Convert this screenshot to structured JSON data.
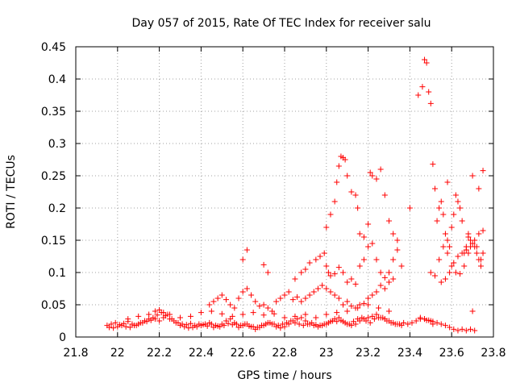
{
  "chart_data": {
    "type": "scatter",
    "title": "Day 057 of 2015, Rate Of TEC Index for receiver salu",
    "xlabel": "GPS time / hours",
    "ylabel": "ROTI / TECUs",
    "xlim": [
      21.8,
      23.8
    ],
    "ylim": [
      0,
      0.45
    ],
    "xticks": [
      21.8,
      22,
      22.2,
      22.4,
      22.6,
      22.8,
      23,
      23.2,
      23.4,
      23.6,
      23.8
    ],
    "xtick_labels": [
      "21.8",
      "22",
      "22.2",
      "22.4",
      "22.6",
      "22.8",
      "23",
      "23.2",
      "23.4",
      "23.6",
      "23.8"
    ],
    "yticks": [
      0,
      0.05,
      0.1,
      0.15,
      0.2,
      0.25,
      0.3,
      0.35,
      0.4,
      0.45
    ],
    "ytick_labels": [
      "0",
      "0.05",
      "0.1",
      "0.15",
      "0.2",
      "0.25",
      "0.3",
      "0.35",
      "0.4",
      "0.45"
    ],
    "grid": true,
    "marker": "+",
    "marker_color": "#ff0000",
    "series": [
      {
        "name": "ROTI",
        "x": [
          21.95,
          21.97,
          21.99,
          22.01,
          22.03,
          22.05,
          22.07,
          22.09,
          22.11,
          22.13,
          22.15,
          22.17,
          22.19,
          22.21,
          22.23,
          22.25,
          22.27,
          22.29,
          22.31,
          22.33,
          22.35,
          22.37,
          22.39,
          22.41,
          22.43,
          22.45,
          22.47,
          22.49,
          22.51,
          22.53,
          22.55,
          22.57,
          22.59,
          22.61,
          22.63,
          22.65,
          22.67,
          22.69,
          22.71,
          22.73,
          22.75,
          22.77,
          22.79,
          22.81,
          22.83,
          22.85,
          22.87,
          22.89,
          22.91,
          22.93,
          22.95,
          22.97,
          22.99,
          23.01,
          23.03,
          23.05,
          23.07,
          23.09,
          23.11,
          23.13,
          23.15,
          23.17,
          23.19,
          23.21,
          23.23,
          23.25,
          23.27,
          23.29,
          23.31,
          23.33,
          23.35,
          23.37,
          23.39,
          23.41,
          23.43,
          23.45,
          23.47,
          23.49,
          23.51,
          23.53,
          23.55,
          23.57,
          23.59,
          23.61,
          23.63,
          23.65,
          23.67,
          23.69,
          23.71,
          21.96,
          21.98,
          22.0,
          22.02,
          22.04,
          22.06,
          22.08,
          22.1,
          22.12,
          22.14,
          22.16,
          22.18,
          22.2,
          22.22,
          22.24,
          22.26,
          22.28,
          22.3,
          22.32,
          22.34,
          22.36,
          22.38,
          22.4,
          22.42,
          22.44,
          22.46,
          22.48,
          22.5,
          22.52,
          22.54,
          22.56,
          22.58,
          22.6,
          22.62,
          22.64,
          22.66,
          22.68,
          22.7,
          22.72,
          22.74,
          22.76,
          22.78,
          22.8,
          22.82,
          22.84,
          22.86,
          22.88,
          22.9,
          22.92,
          22.94,
          22.96,
          22.98,
          23.0,
          23.02,
          23.04,
          23.06,
          23.08,
          23.1,
          23.12,
          23.14,
          23.16,
          23.18,
          23.2,
          23.22,
          23.24,
          23.26,
          23.28,
          23.3,
          23.32,
          23.34,
          23.36,
          22.05,
          22.1,
          22.15,
          22.18,
          22.2,
          22.22,
          22.25,
          22.3,
          22.35,
          22.4,
          22.45,
          22.5,
          22.55,
          22.6,
          22.65,
          22.7,
          22.75,
          22.8,
          22.85,
          22.9,
          22.95,
          23.0,
          23.05,
          23.1,
          23.15,
          23.2,
          23.25,
          23.3,
          22.44,
          22.46,
          22.48,
          22.5,
          22.52,
          22.54,
          22.56,
          22.58,
          22.6,
          22.62,
          22.64,
          22.66,
          22.68,
          22.7,
          22.72,
          22.74,
          22.76,
          22.78,
          22.8,
          22.82,
          22.84,
          22.86,
          22.88,
          22.9,
          22.92,
          22.94,
          22.96,
          22.98,
          23.0,
          23.02,
          23.04,
          23.06,
          23.08,
          23.1,
          23.12,
          23.14,
          23.16,
          23.18,
          23.2,
          23.22,
          23.24,
          23.26,
          23.28,
          23.3,
          23.32,
          22.6,
          22.62,
          22.7,
          22.72,
          22.85,
          22.88,
          22.9,
          22.92,
          22.95,
          22.97,
          22.99,
          23.0,
          23.01,
          23.02,
          23.04,
          23.06,
          23.08,
          23.1,
          23.12,
          23.14,
          23.16,
          23.18,
          23.2,
          23.22,
          23.24,
          23.26,
          23.28,
          23.3,
          23.32,
          23.34,
          23.36,
          23.0,
          23.02,
          23.04,
          23.05,
          23.06,
          23.07,
          23.08,
          23.09,
          23.1,
          23.12,
          23.14,
          23.15,
          23.16,
          23.18,
          23.2,
          23.21,
          23.22,
          23.24,
          23.26,
          23.28,
          23.3,
          23.32,
          23.34,
          23.4,
          23.44,
          23.46,
          23.47,
          23.48,
          23.49,
          23.5,
          23.51,
          23.52,
          23.53,
          23.54,
          23.55,
          23.56,
          23.57,
          23.58,
          23.59,
          23.6,
          23.61,
          23.62,
          23.63,
          23.64,
          23.65,
          23.66,
          23.67,
          23.68,
          23.69,
          23.7,
          23.71,
          23.72,
          23.73,
          23.74,
          23.75,
          23.5,
          23.52,
          23.54,
          23.56,
          23.58,
          23.6,
          23.62,
          23.64,
          23.66,
          23.68,
          23.7,
          23.72,
          23.74,
          23.55,
          23.57,
          23.59,
          23.61,
          23.63,
          23.65,
          23.67,
          23.69,
          23.71,
          23.73,
          23.75,
          23.45,
          23.47,
          23.48,
          23.5,
          23.51,
          23.7,
          23.75,
          23.73,
          23.68,
          23.58
        ],
        "y": [
          0.018,
          0.02,
          0.022,
          0.019,
          0.021,
          0.024,
          0.02,
          0.018,
          0.022,
          0.025,
          0.028,
          0.03,
          0.034,
          0.038,
          0.033,
          0.028,
          0.025,
          0.022,
          0.02,
          0.019,
          0.021,
          0.018,
          0.02,
          0.019,
          0.017,
          0.02,
          0.018,
          0.016,
          0.018,
          0.021,
          0.019,
          0.02,
          0.018,
          0.02,
          0.017,
          0.016,
          0.015,
          0.018,
          0.02,
          0.022,
          0.02,
          0.018,
          0.02,
          0.022,
          0.025,
          0.022,
          0.02,
          0.018,
          0.02,
          0.022,
          0.019,
          0.018,
          0.02,
          0.022,
          0.025,
          0.024,
          0.026,
          0.022,
          0.02,
          0.024,
          0.028,
          0.03,
          0.025,
          0.022,
          0.028,
          0.03,
          0.03,
          0.025,
          0.022,
          0.02,
          0.02,
          0.022,
          0.02,
          0.022,
          0.025,
          0.028,
          0.028,
          0.026,
          0.024,
          0.022,
          0.02,
          0.018,
          0.015,
          0.012,
          0.01,
          0.012,
          0.01,
          0.012,
          0.01,
          0.015,
          0.014,
          0.016,
          0.018,
          0.016,
          0.015,
          0.018,
          0.02,
          0.022,
          0.024,
          0.026,
          0.028,
          0.025,
          0.03,
          0.035,
          0.028,
          0.022,
          0.018,
          0.016,
          0.014,
          0.015,
          0.016,
          0.018,
          0.02,
          0.022,
          0.015,
          0.017,
          0.02,
          0.025,
          0.028,
          0.022,
          0.015,
          0.018,
          0.02,
          0.016,
          0.012,
          0.015,
          0.018,
          0.022,
          0.02,
          0.016,
          0.014,
          0.016,
          0.02,
          0.025,
          0.028,
          0.03,
          0.025,
          0.02,
          0.018,
          0.016,
          0.018,
          0.02,
          0.024,
          0.028,
          0.03,
          0.024,
          0.02,
          0.018,
          0.02,
          0.025,
          0.028,
          0.03,
          0.032,
          0.035,
          0.03,
          0.028,
          0.025,
          0.022,
          0.02,
          0.018,
          0.028,
          0.032,
          0.035,
          0.04,
          0.042,
          0.038,
          0.035,
          0.03,
          0.032,
          0.038,
          0.04,
          0.036,
          0.032,
          0.035,
          0.038,
          0.034,
          0.036,
          0.03,
          0.032,
          0.035,
          0.03,
          0.035,
          0.038,
          0.04,
          0.045,
          0.05,
          0.045,
          0.04,
          0.05,
          0.055,
          0.06,
          0.065,
          0.058,
          0.05,
          0.045,
          0.06,
          0.07,
          0.075,
          0.065,
          0.055,
          0.048,
          0.05,
          0.045,
          0.04,
          0.055,
          0.06,
          0.065,
          0.07,
          0.058,
          0.062,
          0.055,
          0.06,
          0.065,
          0.07,
          0.075,
          0.08,
          0.075,
          0.07,
          0.065,
          0.06,
          0.05,
          0.055,
          0.048,
          0.045,
          0.05,
          0.052,
          0.06,
          0.065,
          0.07,
          0.08,
          0.075,
          0.085,
          0.09,
          0.12,
          0.135,
          0.112,
          0.1,
          0.09,
          0.1,
          0.105,
          0.115,
          0.12,
          0.125,
          0.13,
          0.11,
          0.1,
          0.095,
          0.098,
          0.108,
          0.1,
          0.085,
          0.09,
          0.082,
          0.11,
          0.12,
          0.14,
          0.145,
          0.12,
          0.1,
          0.092,
          0.1,
          0.12,
          0.135,
          0.11,
          0.17,
          0.19,
          0.21,
          0.24,
          0.265,
          0.28,
          0.278,
          0.275,
          0.25,
          0.225,
          0.22,
          0.2,
          0.16,
          0.155,
          0.175,
          0.255,
          0.25,
          0.245,
          0.26,
          0.22,
          0.18,
          0.16,
          0.15,
          0.2,
          0.375,
          0.388,
          0.43,
          0.425,
          0.38,
          0.362,
          0.268,
          0.23,
          0.18,
          0.2,
          0.21,
          0.19,
          0.16,
          0.15,
          0.14,
          0.17,
          0.19,
          0.22,
          0.21,
          0.2,
          0.18,
          0.13,
          0.14,
          0.16,
          0.15,
          0.25,
          0.14,
          0.13,
          0.12,
          0.11,
          0.13,
          0.1,
          0.095,
          0.12,
          0.14,
          0.13,
          0.11,
          0.1,
          0.098,
          0.11,
          0.13,
          0.145,
          0.14,
          0.12,
          0.085,
          0.09,
          0.1,
          0.115,
          0.125,
          0.13,
          0.135,
          0.14,
          0.15,
          0.16,
          0.165,
          0.03,
          0.028,
          0.026,
          0.025,
          0.02,
          0.04,
          0.258,
          0.23,
          0.155,
          0.24
        ]
      }
    ]
  }
}
